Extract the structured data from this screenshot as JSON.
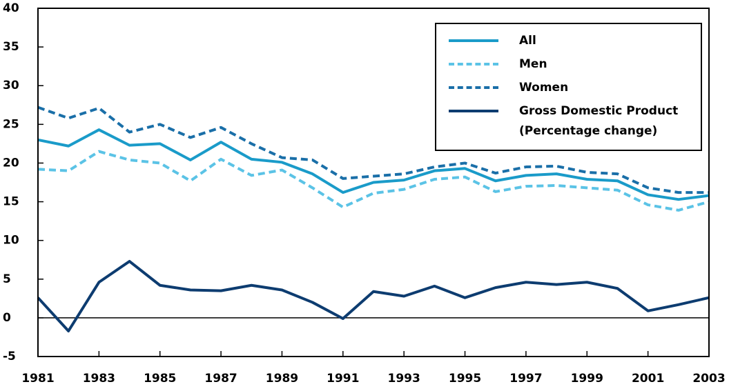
{
  "chart_data": {
    "type": "line",
    "x": [
      1981,
      1982,
      1983,
      1984,
      1985,
      1986,
      1987,
      1988,
      1989,
      1990,
      1991,
      1992,
      1993,
      1994,
      1995,
      1996,
      1997,
      1998,
      1999,
      2000,
      2001,
      2002,
      2003
    ],
    "xlim": [
      1981,
      2003
    ],
    "xticks": [
      1981,
      1983,
      1985,
      1987,
      1989,
      1991,
      1993,
      1995,
      1997,
      1999,
      2001,
      2003
    ],
    "ylim": [
      -5,
      40
    ],
    "yticks": [
      -5,
      0,
      5,
      10,
      15,
      20,
      25,
      30,
      35,
      40
    ],
    "series": [
      {
        "name": "All",
        "color": "#1a9bc9",
        "dash": false,
        "values": [
          23.0,
          22.2,
          24.3,
          22.3,
          22.5,
          20.4,
          22.7,
          20.5,
          20.1,
          18.6,
          16.2,
          17.5,
          17.8,
          19.0,
          19.3,
          17.7,
          18.4,
          18.6,
          17.9,
          17.7,
          15.9,
          15.3,
          15.8
        ]
      },
      {
        "name": "Men",
        "color": "#5bc3e6",
        "dash": true,
        "values": [
          19.2,
          19.0,
          21.5,
          20.4,
          20.0,
          17.7,
          20.5,
          18.4,
          19.1,
          16.8,
          14.3,
          16.1,
          16.6,
          17.9,
          18.2,
          16.3,
          17.0,
          17.1,
          16.8,
          16.5,
          14.6,
          13.9,
          15.0
        ]
      },
      {
        "name": "Women",
        "color": "#1a6fa8",
        "dash": true,
        "values": [
          27.2,
          25.8,
          27.1,
          24.0,
          25.0,
          23.3,
          24.6,
          22.5,
          20.7,
          20.4,
          18.0,
          18.3,
          18.6,
          19.5,
          20.0,
          18.7,
          19.5,
          19.6,
          18.8,
          18.6,
          16.8,
          16.2,
          16.2
        ]
      },
      {
        "name": "Gross Domestic Product\n(Percentage change)",
        "color": "#0d3c70",
        "dash": false,
        "values": [
          2.6,
          -1.7,
          4.6,
          7.3,
          4.2,
          3.6,
          3.5,
          4.2,
          3.6,
          2.0,
          -0.1,
          3.4,
          2.8,
          4.1,
          2.6,
          3.9,
          4.6,
          4.3,
          4.6,
          3.8,
          0.9,
          1.7,
          2.6
        ]
      }
    ],
    "legend": "top-right"
  }
}
